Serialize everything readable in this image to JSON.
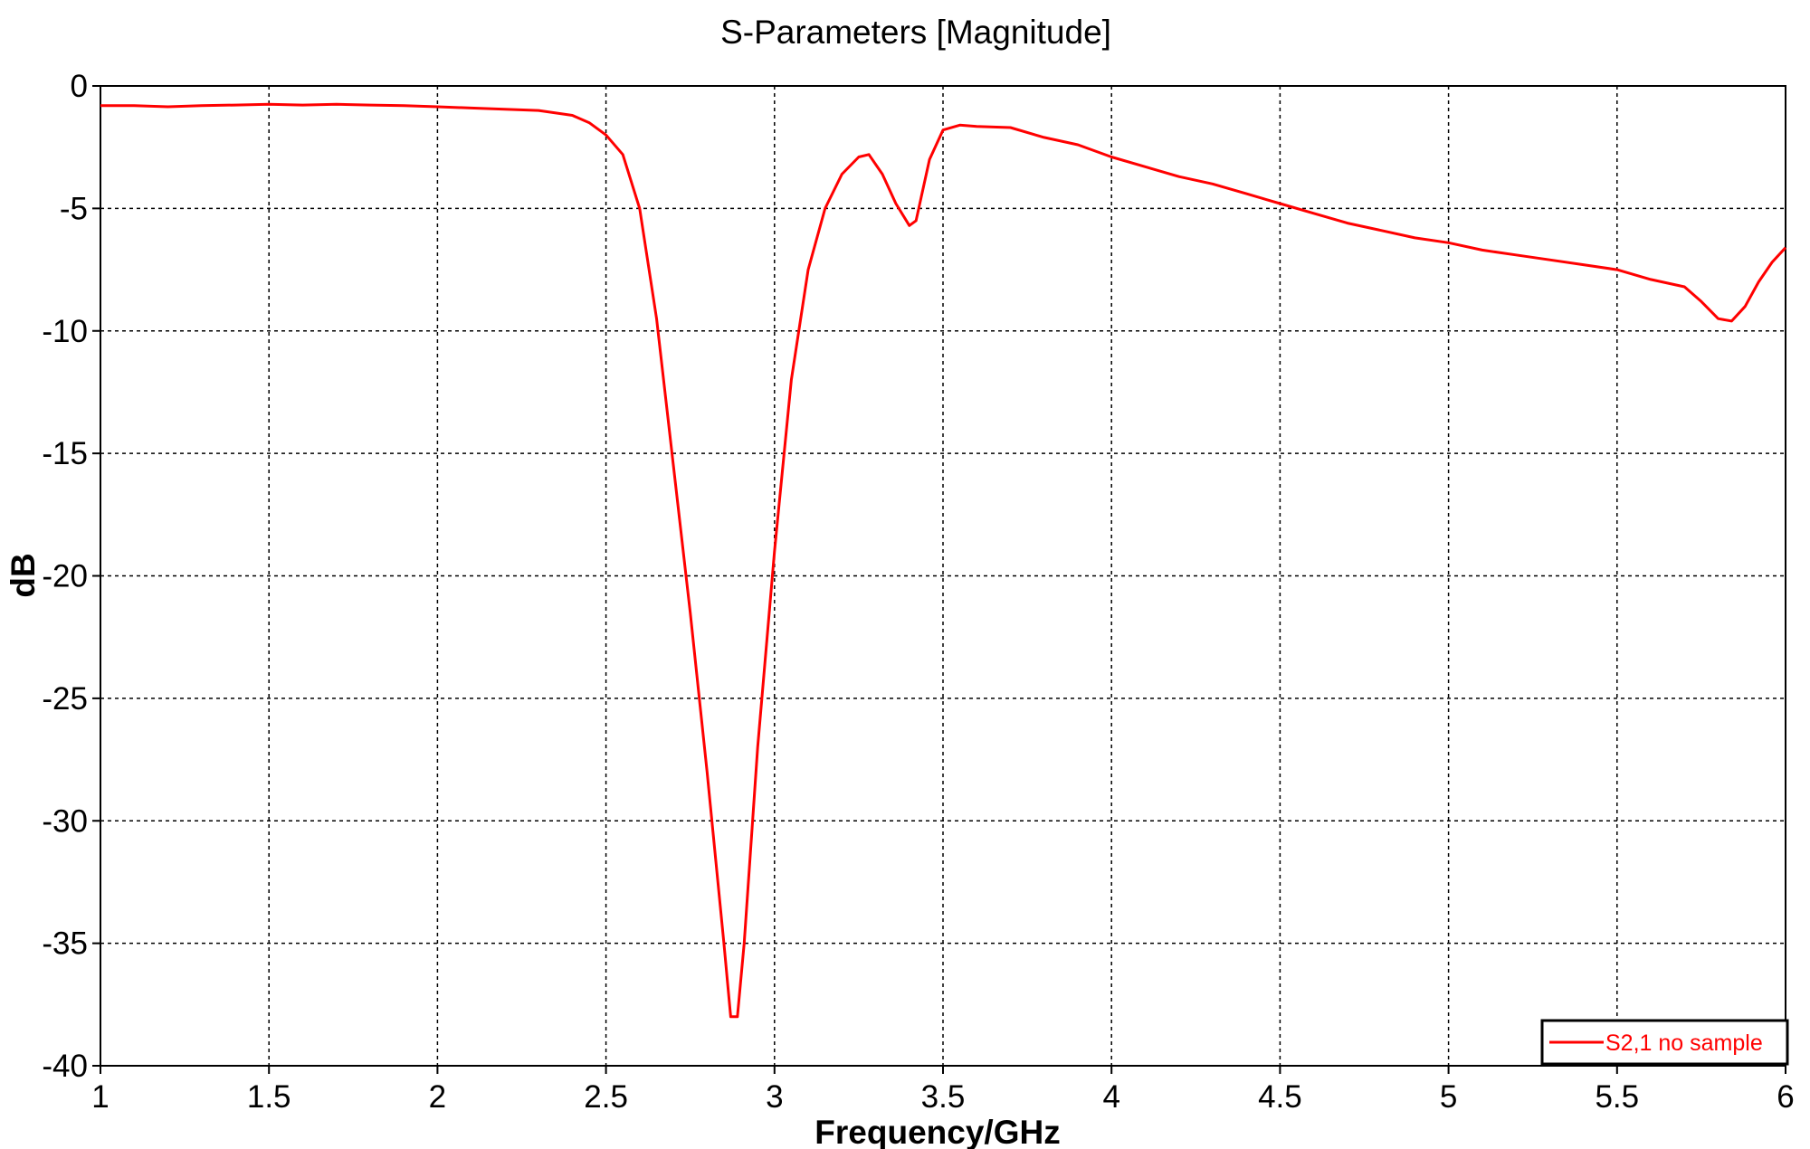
{
  "chart_data": {
    "type": "line",
    "title": "S-Parameters [Magnitude]",
    "xlabel": "Frequency/GHz",
    "ylabel": "dB",
    "xlim": [
      1,
      6
    ],
    "ylim": [
      -40,
      0
    ],
    "xticks": [
      "1",
      "1.5",
      "2",
      "2.5",
      "3",
      "3.5",
      "4",
      "4.5",
      "5",
      "5.5",
      "6"
    ],
    "yticks": [
      "0",
      "-5",
      "-10",
      "-15",
      "-20",
      "-25",
      "-30",
      "-35",
      "-40"
    ],
    "grid": true,
    "legend": {
      "position": "bottom-right",
      "entries": [
        "S2,1 no sample"
      ]
    },
    "series": [
      {
        "name": "S2,1 no sample",
        "color": "#ff0000",
        "x": [
          1.0,
          1.1,
          1.2,
          1.3,
          1.4,
          1.5,
          1.6,
          1.7,
          1.8,
          1.9,
          2.0,
          2.1,
          2.2,
          2.3,
          2.4,
          2.45,
          2.5,
          2.55,
          2.6,
          2.65,
          2.7,
          2.75,
          2.8,
          2.85,
          2.87,
          2.89,
          2.91,
          2.95,
          3.0,
          3.05,
          3.1,
          3.15,
          3.2,
          3.25,
          3.28,
          3.32,
          3.36,
          3.4,
          3.42,
          3.46,
          3.5,
          3.55,
          3.6,
          3.7,
          3.8,
          3.9,
          4.0,
          4.1,
          4.2,
          4.3,
          4.4,
          4.5,
          4.6,
          4.7,
          4.8,
          4.9,
          5.0,
          5.1,
          5.2,
          5.3,
          5.4,
          5.5,
          5.6,
          5.7,
          5.75,
          5.8,
          5.84,
          5.88,
          5.92,
          5.96,
          6.0
        ],
        "y": [
          -0.8,
          -0.8,
          -0.85,
          -0.8,
          -0.78,
          -0.75,
          -0.78,
          -0.75,
          -0.78,
          -0.8,
          -0.85,
          -0.9,
          -0.95,
          -1.0,
          -1.2,
          -1.5,
          -2.0,
          -2.8,
          -5.0,
          -9.5,
          -15.5,
          -21.5,
          -28.0,
          -35.0,
          -38.0,
          -38.0,
          -35.0,
          -27.0,
          -19.0,
          -12.0,
          -7.5,
          -5.0,
          -3.6,
          -2.9,
          -2.8,
          -3.6,
          -4.8,
          -5.7,
          -5.5,
          -3.0,
          -1.8,
          -1.6,
          -1.65,
          -1.7,
          -2.1,
          -2.4,
          -2.9,
          -3.3,
          -3.7,
          -4.0,
          -4.4,
          -4.8,
          -5.2,
          -5.6,
          -5.9,
          -6.2,
          -6.4,
          -6.7,
          -6.9,
          -7.1,
          -7.3,
          -7.5,
          -7.9,
          -8.2,
          -8.8,
          -9.5,
          -9.6,
          -9.0,
          -8.0,
          -7.2,
          -6.6
        ]
      }
    ]
  }
}
